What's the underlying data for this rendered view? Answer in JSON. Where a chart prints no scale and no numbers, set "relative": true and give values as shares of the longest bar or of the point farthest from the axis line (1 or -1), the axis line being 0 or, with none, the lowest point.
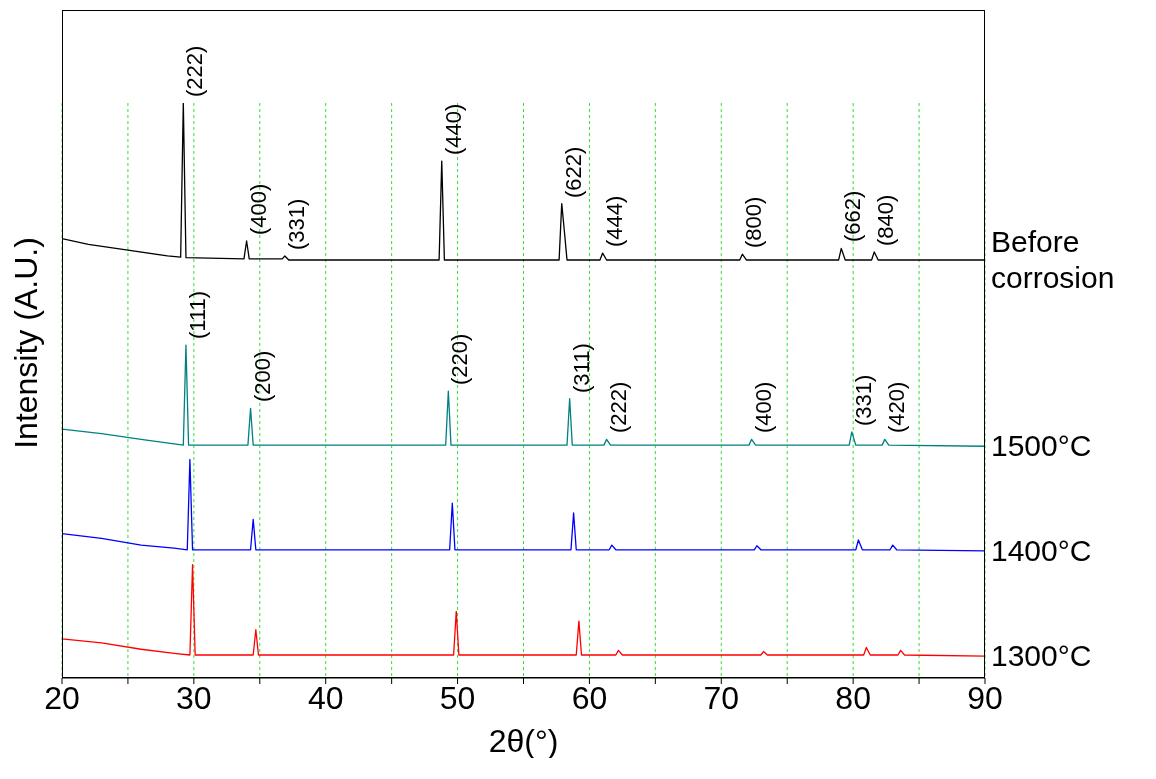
{
  "chart_data": {
    "type": "line",
    "relative": true,
    "xlabel": "2θ(°)",
    "ylabel": "Intensity (A.U.)",
    "xlim": [
      20,
      90
    ],
    "xticks": [
      20,
      {
        "value": 25,
        "label": null
      },
      30,
      {
        "value": 35,
        "label": null
      },
      40,
      {
        "value": 45,
        "label": null
      },
      50,
      {
        "value": 55,
        "label": null
      },
      60,
      {
        "value": 65,
        "label": null
      },
      70,
      {
        "value": 75,
        "label": null
      },
      80,
      {
        "value": 85,
        "label": null
      },
      90
    ],
    "grid": "x",
    "marker": "none",
    "line_style": "solid",
    "series": [
      {
        "name": "Before corrosion",
        "color": "#000000",
        "x": [
          20,
          22,
          25,
          28,
          29,
          29.2,
          29.4,
          33.8,
          34.0,
          34.2,
          36.7,
          36.9,
          37.2,
          48.6,
          48.8,
          49.0,
          57.7,
          57.9,
          58.1,
          58.3,
          60.8,
          61.0,
          61.3,
          71.4,
          71.6,
          71.9,
          78.9,
          79.1,
          79.4,
          81.4,
          81.6,
          81.9,
          90
        ],
        "values": [
          0.764,
          0.754,
          0.744,
          0.734,
          0.732,
          1.0,
          0.731,
          0.729,
          0.76,
          0.729,
          0.729,
          0.734,
          0.727,
          0.727,
          0.899,
          0.727,
          0.727,
          0.825,
          0.777,
          0.727,
          0.727,
          0.739,
          0.727,
          0.727,
          0.737,
          0.727,
          0.727,
          0.747,
          0.727,
          0.727,
          0.741,
          0.727,
          0.727
        ]
      },
      {
        "name": "1500°C",
        "color": "#008080",
        "x": [
          20,
          23,
          26,
          28.5,
          29.2,
          29.4,
          29.6,
          34.1,
          34.3,
          34.5,
          49.1,
          49.3,
          49.5,
          58.3,
          58.5,
          58.7,
          61.1,
          61.3,
          61.6,
          72.1,
          72.3,
          72.6,
          79.7,
          79.9,
          80.2,
          82.2,
          82.4,
          82.7,
          90
        ],
        "values": [
          0.433,
          0.425,
          0.415,
          0.407,
          0.405,
          0.579,
          0.405,
          0.405,
          0.469,
          0.405,
          0.405,
          0.499,
          0.405,
          0.405,
          0.486,
          0.405,
          0.405,
          0.415,
          0.405,
          0.405,
          0.415,
          0.405,
          0.405,
          0.428,
          0.405,
          0.405,
          0.415,
          0.405,
          0.403
        ]
      },
      {
        "name": "1400°C",
        "color": "#0000ff",
        "x": [
          20,
          23,
          26,
          28.5,
          29.5,
          29.7,
          29.9,
          34.3,
          34.5,
          34.7,
          49.4,
          49.6,
          49.8,
          58.6,
          58.8,
          59.0,
          61.5,
          61.7,
          62.0,
          72.5,
          72.7,
          73.0,
          80.2,
          80.4,
          80.7,
          82.8,
          83.0,
          83.3,
          90
        ],
        "values": [
          0.251,
          0.243,
          0.231,
          0.226,
          0.223,
          0.38,
          0.223,
          0.223,
          0.276,
          0.223,
          0.223,
          0.304,
          0.223,
          0.223,
          0.287,
          0.223,
          0.223,
          0.231,
          0.223,
          0.223,
          0.23,
          0.223,
          0.223,
          0.24,
          0.223,
          0.223,
          0.231,
          0.223,
          0.221
        ]
      },
      {
        "name": "1300°C",
        "color": "#ff0000",
        "x": [
          20,
          23,
          26,
          28.5,
          29.7,
          29.9,
          30.1,
          34.5,
          34.7,
          34.9,
          49.7,
          49.9,
          50.1,
          59.0,
          59.2,
          59.4,
          62.0,
          62.2,
          62.5,
          73.0,
          73.2,
          73.5,
          80.8,
          81.0,
          81.3,
          83.4,
          83.6,
          83.9,
          90
        ],
        "values": [
          0.068,
          0.061,
          0.05,
          0.043,
          0.04,
          0.197,
          0.04,
          0.04,
          0.084,
          0.04,
          0.04,
          0.116,
          0.04,
          0.04,
          0.099,
          0.04,
          0.04,
          0.048,
          0.04,
          0.04,
          0.046,
          0.04,
          0.04,
          0.053,
          0.04,
          0.04,
          0.048,
          0.04,
          0.038
        ]
      }
    ],
    "annotations": [
      {
        "text": "(222)",
        "x": 29.2,
        "y": 1.0
      },
      {
        "text": "(400)",
        "x": 34.0,
        "y": 0.76
      },
      {
        "text": "(331)",
        "x": 36.9,
        "y": 0.734
      },
      {
        "text": "(440)",
        "x": 48.8,
        "y": 0.899
      },
      {
        "text": "(622)",
        "x": 57.9,
        "y": 0.825
      },
      {
        "text": "(444)",
        "x": 61.0,
        "y": 0.739
      },
      {
        "text": "(800)",
        "x": 71.6,
        "y": 0.737
      },
      {
        "text": "(662)",
        "x": 79.1,
        "y": 0.747
      },
      {
        "text": "(840)",
        "x": 81.6,
        "y": 0.741
      },
      {
        "text": "(111)",
        "x": 29.4,
        "y": 0.579
      },
      {
        "text": "(200)",
        "x": 34.3,
        "y": 0.469
      },
      {
        "text": "(220)",
        "x": 49.3,
        "y": 0.499
      },
      {
        "text": "(311)",
        "x": 58.5,
        "y": 0.486
      },
      {
        "text": "(222)",
        "x": 61.3,
        "y": 0.415
      },
      {
        "text": "(400)",
        "x": 72.3,
        "y": 0.415
      },
      {
        "text": "(331)",
        "x": 79.9,
        "y": 0.428
      },
      {
        "text": "(420)",
        "x": 82.4,
        "y": 0.415
      }
    ]
  }
}
